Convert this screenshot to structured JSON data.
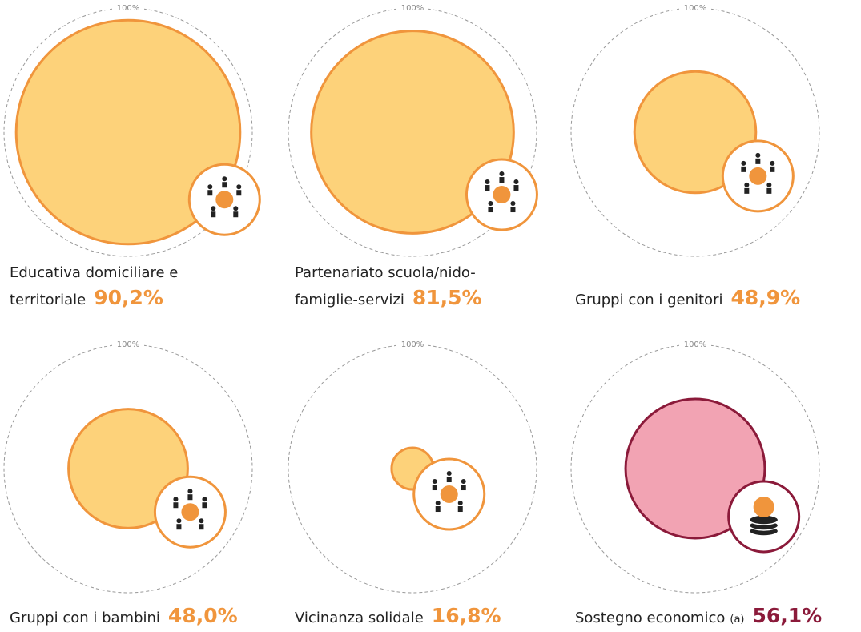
{
  "chart_data": {
    "type": "bubble",
    "reference": {
      "value": 100,
      "label": "100%"
    },
    "categories": [
      "Educativa domiciliare e territoriale",
      "Partenariato scuola/nido-famiglie-servizi",
      "Gruppi con i genitori",
      "Gruppi con i bambini",
      "Vicinanza solidale",
      "Sostegno economico"
    ],
    "notes": [
      null,
      null,
      null,
      null,
      null,
      "(a)"
    ],
    "values": [
      90.2,
      81.5,
      48.9,
      48.0,
      16.8,
      56.1
    ],
    "value_labels": [
      "90,2%",
      "81,5%",
      "48,9%",
      "48,0%",
      "16,8%",
      "56,1%"
    ],
    "colors": [
      "#fdd27a",
      "#fdd27a",
      "#fdd27a",
      "#fdd27a",
      "#fdd27a",
      "#f2a3b3"
    ],
    "edge_colors": [
      "#f0953c",
      "#f0953c",
      "#f0953c",
      "#f0953c",
      "#f0953c",
      "#8b1a3a"
    ]
  }
}
